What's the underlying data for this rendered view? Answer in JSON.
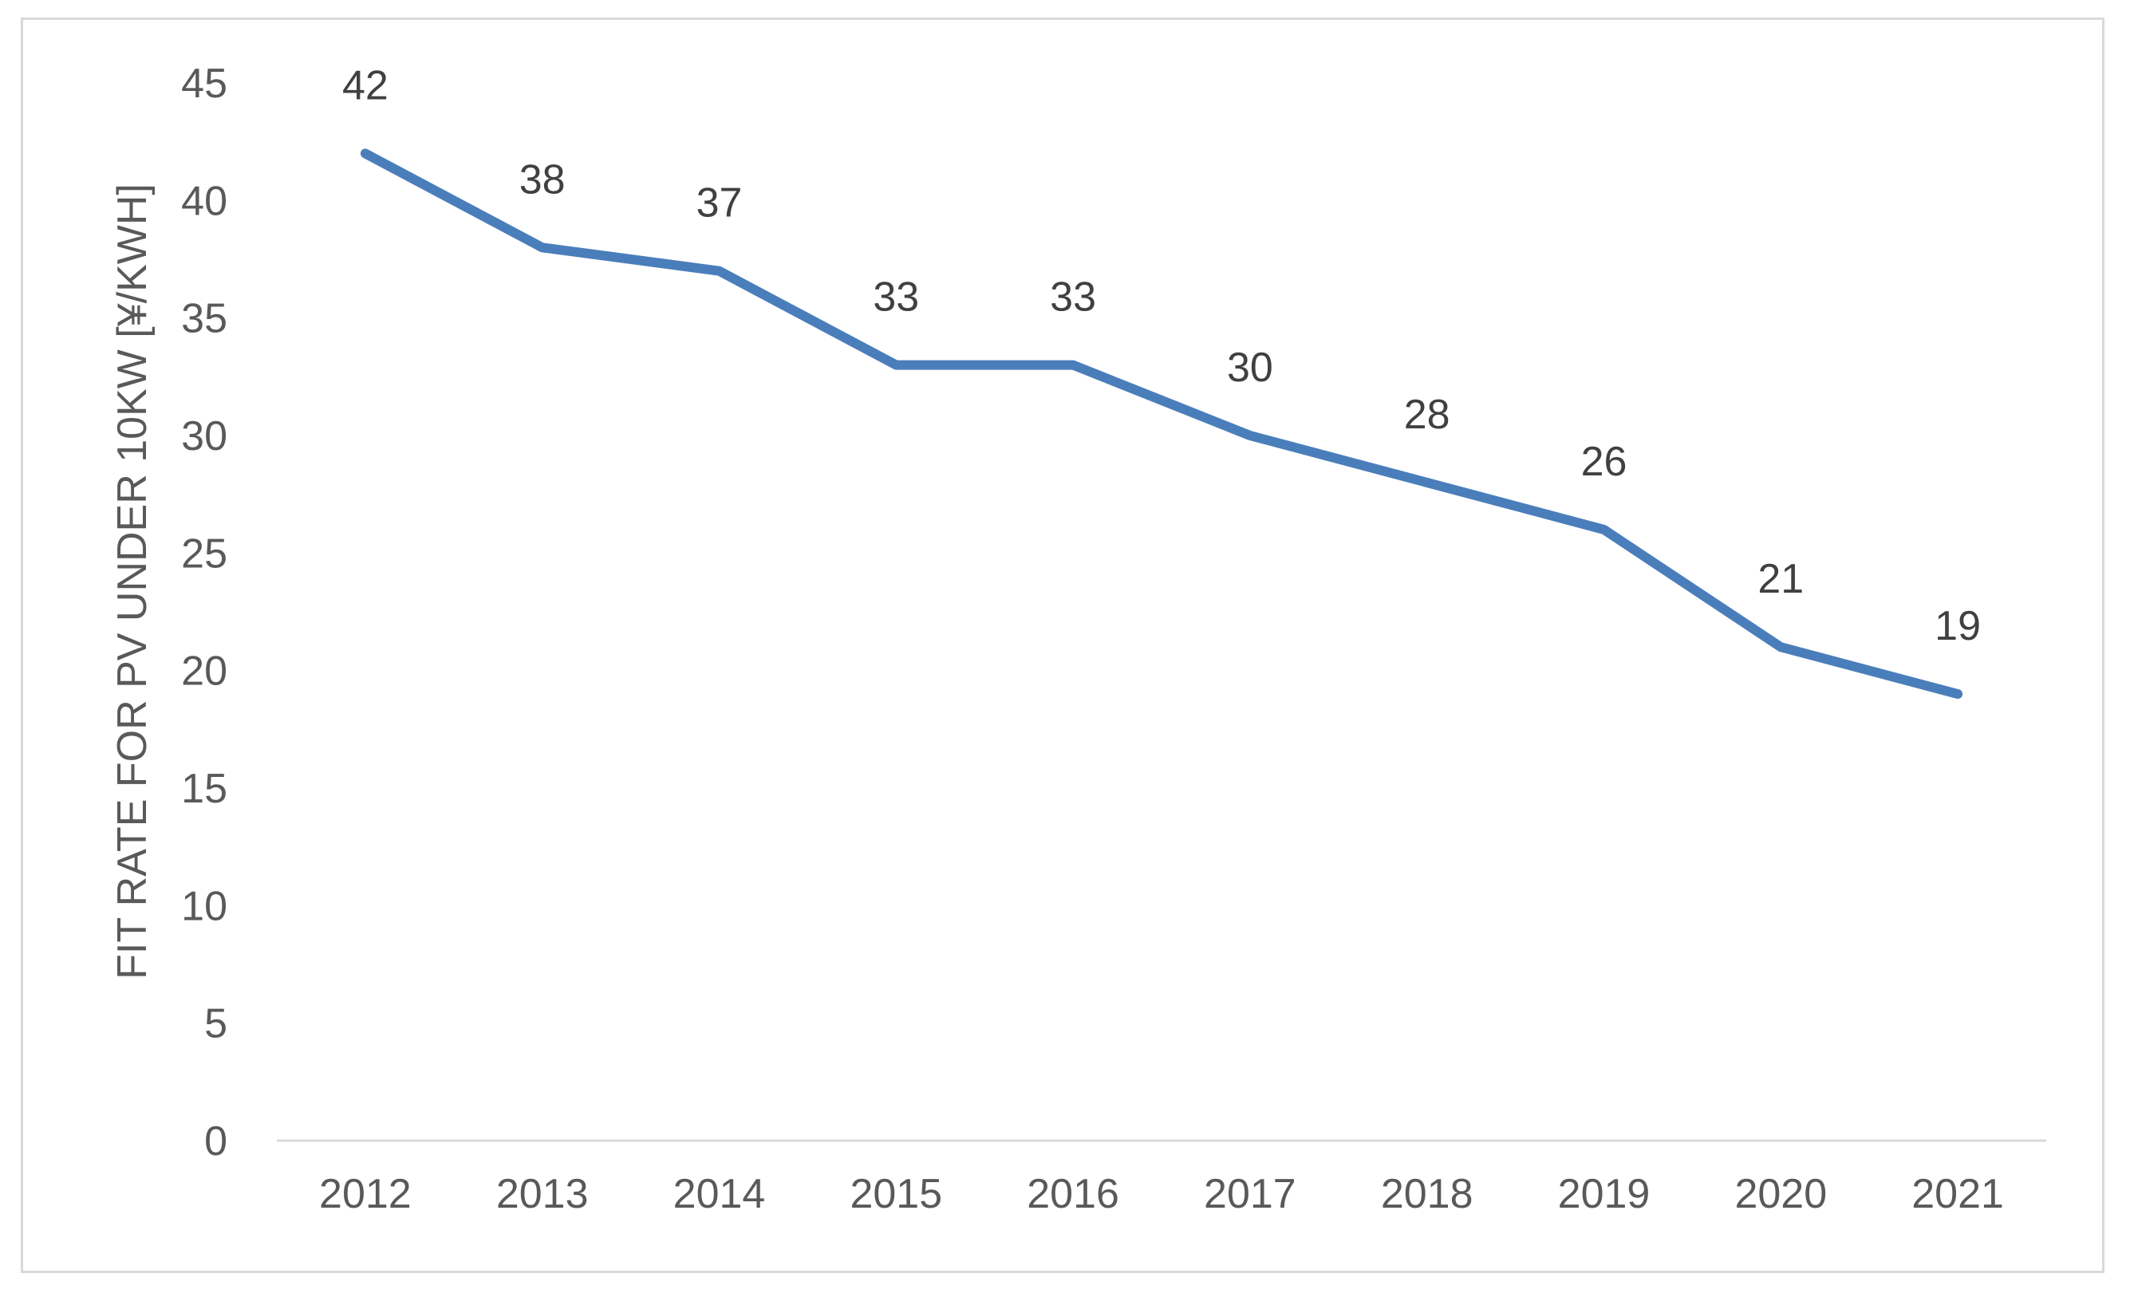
{
  "chart_data": {
    "type": "line",
    "categories": [
      "2012",
      "2013",
      "2014",
      "2015",
      "2016",
      "2017",
      "2018",
      "2019",
      "2020",
      "2021"
    ],
    "series": [
      {
        "values": [
          42,
          38,
          37,
          33,
          33,
          30,
          28,
          26,
          21,
          19
        ]
      }
    ],
    "data_labels": [
      "42",
      "38",
      "37",
      "33",
      "33",
      "30",
      "28",
      "26",
      "21",
      "19"
    ],
    "ylabel": "FIT RATE FOR PV UNDER 10KW [¥/KWH]",
    "ylim": [
      0,
      45
    ],
    "yticks": [
      "0",
      "5",
      "10",
      "15",
      "20",
      "25",
      "30",
      "35",
      "40",
      "45"
    ],
    "grid": false,
    "legend": "none",
    "colors": {
      "line": "#4a7ebb",
      "axis": "#d9d9d9",
      "text": "#595959",
      "frame": "#d9d9d9"
    }
  }
}
